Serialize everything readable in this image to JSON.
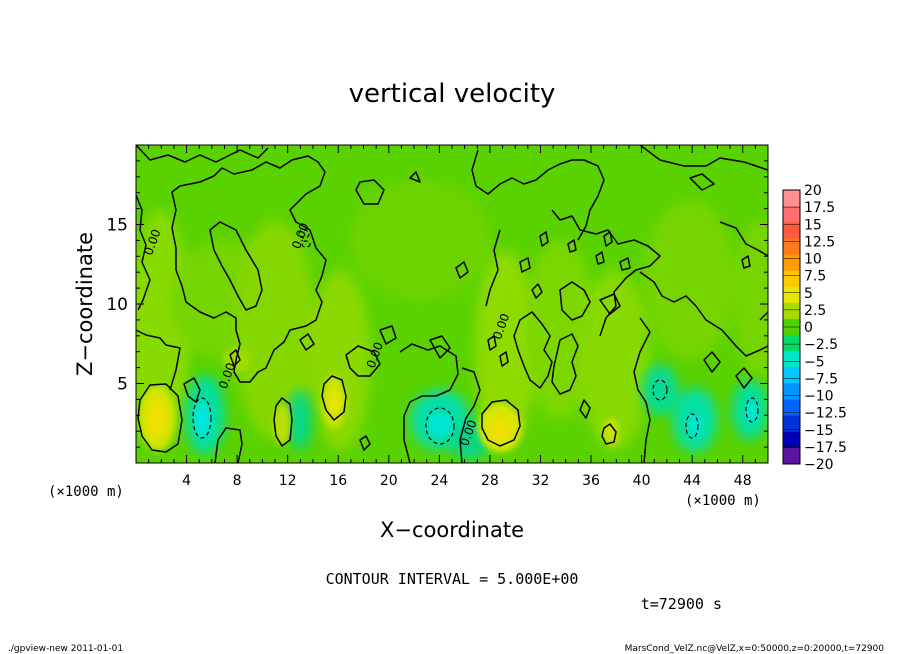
{
  "chart_data": {
    "type": "heatmap",
    "title": "vertical velocity",
    "xlabel": "X−coordinate",
    "ylabel": "Z−coordinate",
    "x_unit": "(×1000 m)",
    "y_unit": "(×1000 m)",
    "xlim": [
      0,
      50
    ],
    "ylim": [
      0,
      20
    ],
    "x_ticks": [
      4,
      8,
      12,
      16,
      20,
      24,
      28,
      32,
      36,
      40,
      44,
      48
    ],
    "y_ticks": [
      5,
      10,
      15
    ],
    "colorbar_levels": [
      "20",
      "17.5",
      "15",
      "12.5",
      "10",
      "7.5",
      "5",
      "2.5",
      "0",
      "−2.5",
      "−5",
      "−7.5",
      "−10",
      "−12.5",
      "−15",
      "−17.5",
      "−20"
    ],
    "colorbar_colors": [
      "#ff9090",
      "#ff7070",
      "#ff5a3c",
      "#ff7a1e",
      "#ff9c00",
      "#ffc800",
      "#e6e600",
      "#aadc00",
      "#50d200",
      "#00dc64",
      "#00e6c8",
      "#00c8ff",
      "#0096ff",
      "#0064ff",
      "#0032dc",
      "#0000b4",
      "#5a14a0"
    ],
    "contour_labels": [
      {
        "text": "0.00",
        "x": 1.6,
        "y": 13.8
      },
      {
        "text": "0.00",
        "x": 13.3,
        "y": 14.2
      },
      {
        "text": "0.00",
        "x": 7.5,
        "y": 5.4
      },
      {
        "text": "0.00",
        "x": 19.2,
        "y": 6.7
      },
      {
        "text": "0.00",
        "x": 29.2,
        "y": 8.5
      },
      {
        "text": "0.00",
        "x": 26.6,
        "y": 1.8
      }
    ],
    "contour_interval": "CONTOUR INTERVAL = 5.000E+00",
    "time_label": "t=72900 s"
  },
  "footer": {
    "left": "./gpview-new  2011-01-01",
    "right": "MarsCond_VelZ.nc@VelZ,x=0:50000,z=0:20000,t=72900"
  }
}
